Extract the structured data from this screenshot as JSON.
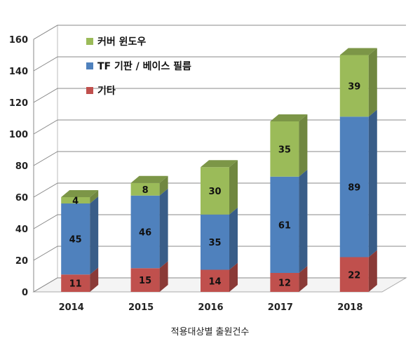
{
  "chart_data": {
    "type": "bar",
    "stacked": true,
    "style": "3d",
    "categories": [
      "2014",
      "2015",
      "2016",
      "2017",
      "2018"
    ],
    "series": [
      {
        "name": "기타",
        "values": [
          11,
          15,
          14,
          12,
          22
        ],
        "color": "#c0504d"
      },
      {
        "name": "TF 기판 / 베이스 필름",
        "values": [
          45,
          46,
          35,
          61,
          89
        ],
        "color": "#4f81bd"
      },
      {
        "name": "커버 윈도우",
        "values": [
          4,
          8,
          30,
          35,
          39
        ],
        "color": "#9bbb59"
      }
    ],
    "legend_order": [
      "커버 윈도우",
      "TF 기판 / 베이스 필름",
      "기타"
    ],
    "legend_position": "top-left",
    "ylim": [
      0,
      160
    ],
    "yticks": [
      0,
      20,
      40,
      60,
      80,
      100,
      120,
      140,
      160
    ],
    "grid": true,
    "xlabel": "적용대상별 출원건수",
    "ylabel": ""
  }
}
